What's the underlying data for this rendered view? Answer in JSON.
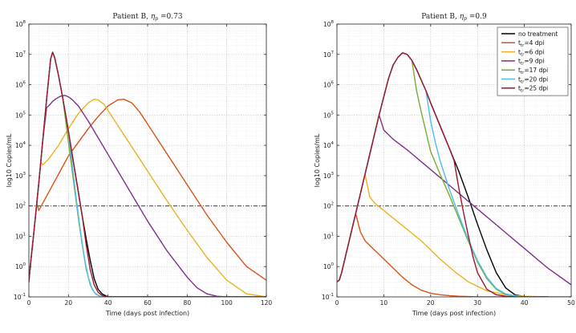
{
  "chart_data": [
    {
      "type": "line",
      "title_prefix": "Patient B, ",
      "title_greek": "η",
      "title_sub": "p",
      "title_value": " =0.73",
      "xlabel": "Time (days post infection)",
      "ylabel": "log10 Copies/mL",
      "xlim": [
        0,
        120
      ],
      "ylim_log10": [
        -1,
        8
      ],
      "x_ticks": [
        "0",
        "20",
        "40",
        "60",
        "80",
        "100",
        "120"
      ],
      "y_tick_exponents": [
        "-1",
        "0",
        "1",
        "2",
        "3",
        "4",
        "5",
        "6",
        "7",
        "8"
      ],
      "threshold_log10": 2,
      "grid": true,
      "series": [
        {
          "name": "no treatment",
          "color": "#000000",
          "x": [
            0,
            1,
            2,
            3,
            4,
            5,
            7,
            9,
            11,
            12,
            13,
            15,
            17,
            19,
            21,
            23,
            25,
            27,
            29,
            31,
            33,
            35,
            37,
            39,
            41,
            44,
            50,
            120
          ],
          "y": [
            -0.5,
            0.2,
            0.8,
            1.45,
            2.1,
            2.75,
            4.15,
            5.55,
            6.85,
            7.07,
            6.9,
            6.3,
            5.6,
            4.85,
            4.05,
            3.25,
            2.45,
            1.65,
            0.9,
            0.2,
            -0.4,
            -0.75,
            -0.9,
            -0.97,
            -1.0,
            -1.0,
            -1.0,
            -1.0
          ]
        },
        {
          "name": "t_tr=4 dpi",
          "color": "#d95319",
          "x": [
            0,
            1,
            2,
            3,
            4,
            5,
            10,
            15,
            20,
            25,
            30,
            35,
            40,
            45,
            48,
            52,
            56,
            60,
            70,
            80,
            90,
            100,
            110,
            120
          ],
          "y": [
            -0.5,
            0.2,
            0.8,
            1.45,
            2.1,
            1.85,
            2.45,
            3.05,
            3.65,
            4.1,
            4.55,
            4.95,
            5.3,
            5.5,
            5.52,
            5.4,
            5.1,
            4.7,
            3.7,
            2.7,
            1.7,
            0.8,
            0.0,
            -0.45
          ]
        },
        {
          "name": "t_tr=6 dpi",
          "color": "#edb120",
          "x": [
            0,
            1,
            2,
            3,
            4,
            5,
            6,
            7,
            10,
            15,
            20,
            25,
            30,
            33,
            35,
            38,
            42,
            50,
            60,
            70,
            80,
            90,
            100,
            110,
            120
          ],
          "y": [
            -0.5,
            0.2,
            0.8,
            1.45,
            2.1,
            2.75,
            3.45,
            3.35,
            3.55,
            4.0,
            4.55,
            5.05,
            5.4,
            5.52,
            5.5,
            5.35,
            4.95,
            4.15,
            3.15,
            2.15,
            1.2,
            0.3,
            -0.45,
            -0.9,
            -1.0
          ]
        },
        {
          "name": "t_tr=9 dpi",
          "color": "#7e2f8e",
          "x": [
            0,
            1,
            2,
            3,
            4,
            5,
            7,
            9,
            10,
            12,
            14,
            16,
            18,
            20,
            22,
            25,
            30,
            40,
            50,
            60,
            70,
            80,
            85,
            90,
            95,
            100,
            120
          ],
          "y": [
            -0.5,
            0.2,
            0.8,
            1.45,
            2.1,
            2.75,
            4.15,
            5.25,
            5.3,
            5.45,
            5.55,
            5.62,
            5.65,
            5.6,
            5.5,
            5.3,
            4.8,
            3.7,
            2.6,
            1.5,
            0.5,
            -0.35,
            -0.7,
            -0.9,
            -0.98,
            -1.0,
            -1.0
          ]
        },
        {
          "name": "t_tr=17 dpi",
          "color": "#77ac30",
          "x": [
            0,
            1,
            2,
            3,
            4,
            5,
            7,
            9,
            11,
            12,
            13,
            15,
            17,
            19,
            21,
            23,
            25,
            27,
            29,
            31,
            33,
            35,
            37,
            40,
            45,
            120
          ],
          "y": [
            -0.5,
            0.2,
            0.8,
            1.45,
            2.1,
            2.75,
            4.15,
            5.55,
            6.85,
            7.07,
            6.9,
            6.3,
            5.6,
            4.6,
            3.6,
            2.6,
            1.6,
            0.7,
            -0.1,
            -0.6,
            -0.85,
            -0.95,
            -1.0,
            -1.0,
            -1.0,
            -1.0
          ]
        },
        {
          "name": "t_tr=20 dpi",
          "color": "#4dbeee",
          "x": [
            0,
            1,
            2,
            3,
            4,
            5,
            7,
            9,
            11,
            12,
            13,
            15,
            17,
            19,
            20,
            22,
            24,
            26,
            28,
            30,
            32,
            34,
            36,
            40,
            45,
            120
          ],
          "y": [
            -0.5,
            0.2,
            0.8,
            1.45,
            2.1,
            2.75,
            4.15,
            5.55,
            6.85,
            7.07,
            6.9,
            6.3,
            5.6,
            4.85,
            4.45,
            3.3,
            2.2,
            1.2,
            0.3,
            -0.35,
            -0.75,
            -0.92,
            -0.98,
            -1.0,
            -1.0,
            -1.0
          ]
        },
        {
          "name": "t_tr=25 dpi",
          "color": "#a2142f",
          "x": [
            0,
            1,
            2,
            3,
            4,
            5,
            7,
            9,
            11,
            12,
            13,
            15,
            17,
            19,
            21,
            23,
            25,
            27,
            29,
            31,
            33,
            35,
            37,
            39,
            41,
            44,
            50,
            120
          ],
          "y": [
            -0.5,
            0.2,
            0.8,
            1.45,
            2.1,
            2.75,
            4.15,
            5.55,
            6.85,
            7.07,
            6.9,
            6.3,
            5.6,
            4.85,
            4.05,
            3.25,
            2.45,
            1.65,
            0.7,
            -0.1,
            -0.6,
            -0.85,
            -0.95,
            -0.99,
            -1.0,
            -1.0,
            -1.0,
            -1.0
          ]
        }
      ]
    },
    {
      "type": "line",
      "title_prefix": "Patient B, ",
      "title_greek": "η",
      "title_sub": "p",
      "title_value": " =0.9",
      "xlabel": "Time (days post infection)",
      "ylabel": "log10 Copies/mL",
      "xlim": [
        0,
        50
      ],
      "ylim_log10": [
        -1,
        8
      ],
      "x_ticks": [
        "0",
        "10",
        "20",
        "30",
        "40",
        "50"
      ],
      "y_tick_exponents": [
        "-1",
        "0",
        "1",
        "2",
        "3",
        "4",
        "5",
        "6",
        "7",
        "8"
      ],
      "threshold_log10": 2,
      "grid": true,
      "legend_position": "top-right",
      "series": [
        {
          "name": "no treatment",
          "color": "#000000",
          "x": [
            0,
            0.5,
            1,
            2,
            3,
            4,
            5,
            6,
            7,
            8,
            9,
            10,
            11,
            12,
            13,
            14,
            15,
            16,
            17,
            18,
            19,
            20,
            22,
            24,
            26,
            28,
            30,
            32,
            34,
            36,
            38,
            40,
            42,
            45
          ],
          "y": [
            -0.5,
            -0.45,
            -0.2,
            0.45,
            1.1,
            1.75,
            2.4,
            3.05,
            3.7,
            4.35,
            5.0,
            5.6,
            6.2,
            6.65,
            6.9,
            7.05,
            7.0,
            6.8,
            6.5,
            6.15,
            5.8,
            5.4,
            4.65,
            3.9,
            3.15,
            2.3,
            1.4,
            0.55,
            -0.2,
            -0.7,
            -0.93,
            -0.99,
            -1.0,
            -1.0
          ]
        },
        {
          "name": "t_tr=4 dpi",
          "color": "#d95319",
          "x": [
            0,
            0.5,
            1,
            2,
            3,
            4,
            5,
            6,
            8,
            10,
            12,
            14,
            16,
            18,
            20,
            22,
            24,
            26,
            28,
            30,
            32,
            35,
            40,
            45,
            50
          ],
          "y": [
            -0.5,
            -0.45,
            -0.2,
            0.45,
            1.1,
            1.75,
            1.15,
            0.85,
            0.55,
            0.25,
            -0.05,
            -0.35,
            -0.6,
            -0.78,
            -0.88,
            -0.93,
            -0.96,
            -0.98,
            -0.99,
            -1.0,
            -1.0,
            -1.0,
            -1.0,
            -1.0,
            -1.0
          ]
        },
        {
          "name": "t_tr=6 dpi",
          "color": "#edb120",
          "x": [
            0,
            0.5,
            1,
            2,
            3,
            4,
            5,
            6,
            7,
            8,
            10,
            12,
            14,
            16,
            18,
            20,
            22,
            25,
            28,
            32,
            36,
            40,
            45,
            50
          ],
          "y": [
            -0.5,
            -0.45,
            -0.2,
            0.45,
            1.1,
            1.75,
            2.4,
            3.05,
            2.3,
            2.1,
            1.85,
            1.6,
            1.35,
            1.1,
            0.85,
            0.55,
            0.25,
            -0.15,
            -0.5,
            -0.8,
            -0.93,
            -0.98,
            -1.0,
            -1.0
          ]
        },
        {
          "name": "t_tr=9 dpi",
          "color": "#7e2f8e",
          "x": [
            0,
            0.5,
            1,
            2,
            3,
            4,
            5,
            6,
            7,
            8,
            9,
            10,
            11,
            12,
            15,
            20,
            25,
            30,
            35,
            40,
            45,
            50
          ],
          "y": [
            -0.5,
            -0.45,
            -0.2,
            0.45,
            1.1,
            1.75,
            2.4,
            3.05,
            3.7,
            4.35,
            5.0,
            4.5,
            4.35,
            4.2,
            3.85,
            3.2,
            2.55,
            1.9,
            1.25,
            0.6,
            -0.05,
            -0.6
          ]
        },
        {
          "name": "t_tr=17 dpi",
          "color": "#77ac30",
          "x": [
            0,
            0.5,
            1,
            2,
            3,
            4,
            5,
            6,
            7,
            8,
            9,
            10,
            11,
            12,
            13,
            14,
            15,
            16,
            17,
            18,
            19,
            20,
            22,
            24,
            26,
            28,
            30,
            32,
            34,
            36,
            38,
            40,
            45
          ],
          "y": [
            -0.5,
            -0.45,
            -0.2,
            0.45,
            1.1,
            1.75,
            2.4,
            3.05,
            3.7,
            4.35,
            5.0,
            5.6,
            6.2,
            6.65,
            6.9,
            7.05,
            7.0,
            6.8,
            5.8,
            5.1,
            4.45,
            3.8,
            3.05,
            2.35,
            1.6,
            0.85,
            0.15,
            -0.4,
            -0.75,
            -0.92,
            -0.98,
            -1.0,
            -1.0
          ]
        },
        {
          "name": "t_tr=20 dpi",
          "color": "#4dbeee",
          "x": [
            0,
            0.5,
            1,
            2,
            3,
            4,
            5,
            6,
            7,
            8,
            9,
            10,
            11,
            12,
            13,
            14,
            15,
            16,
            17,
            18,
            19,
            20,
            21,
            22,
            24,
            26,
            28,
            30,
            32,
            34,
            36,
            38,
            40,
            45
          ],
          "y": [
            -0.5,
            -0.45,
            -0.2,
            0.45,
            1.1,
            1.75,
            2.4,
            3.05,
            3.7,
            4.35,
            5.0,
            5.6,
            6.2,
            6.65,
            6.9,
            7.05,
            7.0,
            6.8,
            6.5,
            6.15,
            5.8,
            4.8,
            4.1,
            3.5,
            2.55,
            1.7,
            0.9,
            0.2,
            -0.35,
            -0.72,
            -0.9,
            -0.97,
            -1.0,
            -1.0
          ]
        },
        {
          "name": "t_tr=25 dpi",
          "color": "#a2142f",
          "x": [
            0,
            0.5,
            1,
            2,
            3,
            4,
            5,
            6,
            7,
            8,
            9,
            10,
            11,
            12,
            13,
            14,
            15,
            16,
            17,
            18,
            19,
            20,
            22,
            24,
            25,
            26,
            27,
            28,
            29,
            30,
            32,
            34,
            36,
            38,
            40,
            45
          ],
          "y": [
            -0.5,
            -0.45,
            -0.2,
            0.45,
            1.1,
            1.75,
            2.4,
            3.05,
            3.7,
            4.35,
            5.0,
            5.6,
            6.2,
            6.65,
            6.9,
            7.05,
            7.0,
            6.8,
            6.5,
            6.15,
            5.8,
            5.4,
            4.65,
            3.9,
            3.5,
            2.6,
            1.8,
            1.05,
            0.35,
            -0.2,
            -0.75,
            -0.93,
            -0.98,
            -1.0,
            -1.0,
            -1.0
          ]
        }
      ]
    }
  ]
}
